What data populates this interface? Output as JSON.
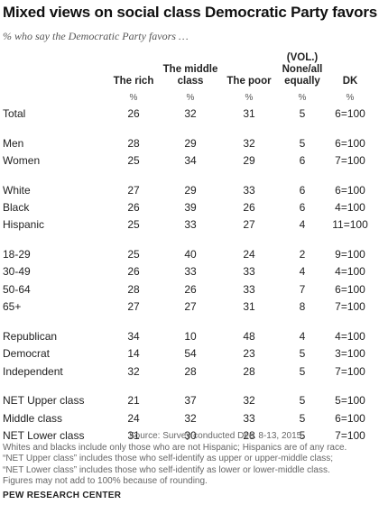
{
  "title": "Mixed views on social class Democratic Party favors",
  "subtitle": "% who say the Democratic Party favors …",
  "columns": [
    {
      "key": "rich",
      "label_lines": [
        "The rich"
      ],
      "unit": "%"
    },
    {
      "key": "middle",
      "label_lines": [
        "The middle",
        "class"
      ],
      "unit": "%"
    },
    {
      "key": "poor",
      "label_lines": [
        "The poor"
      ],
      "unit": "%"
    },
    {
      "key": "none",
      "label_lines": [
        "(VOL.)",
        "None/all",
        "equally"
      ],
      "unit": "%"
    },
    {
      "key": "dk",
      "label_lines": [
        "DK"
      ],
      "unit": "%"
    }
  ],
  "chart_data": {
    "type": "table",
    "title": "Mixed views on social class Democratic Party favors",
    "subtitle": "% who say the Democratic Party favors …",
    "columns": [
      "The rich",
      "The middle class",
      "The poor",
      "(VOL.) None/all equally",
      "DK"
    ],
    "groups": [
      {
        "rows": [
          {
            "label": "Total",
            "values": [
              "26",
              "32",
              "31",
              "5",
              "6=100"
            ]
          }
        ]
      },
      {
        "rows": [
          {
            "label": "Men",
            "values": [
              "28",
              "29",
              "32",
              "5",
              "6=100"
            ]
          },
          {
            "label": "Women",
            "values": [
              "25",
              "34",
              "29",
              "6",
              "7=100"
            ]
          }
        ]
      },
      {
        "rows": [
          {
            "label": "White",
            "values": [
              "27",
              "29",
              "33",
              "6",
              "6=100"
            ]
          },
          {
            "label": "Black",
            "values": [
              "26",
              "39",
              "26",
              "6",
              "4=100"
            ]
          },
          {
            "label": "Hispanic",
            "values": [
              "25",
              "33",
              "27",
              "4",
              "11=100"
            ]
          }
        ]
      },
      {
        "rows": [
          {
            "label": "18-29",
            "values": [
              "25",
              "40",
              "24",
              "2",
              "9=100"
            ]
          },
          {
            "label": "30-49",
            "values": [
              "26",
              "33",
              "33",
              "4",
              "4=100"
            ]
          },
          {
            "label": "50-64",
            "values": [
              "28",
              "26",
              "33",
              "7",
              "6=100"
            ]
          },
          {
            "label": "65+",
            "values": [
              "27",
              "27",
              "31",
              "8",
              "7=100"
            ]
          }
        ]
      },
      {
        "rows": [
          {
            "label": "Republican",
            "values": [
              "34",
              "10",
              "48",
              "4",
              "4=100"
            ]
          },
          {
            "label": "Democrat",
            "values": [
              "14",
              "54",
              "23",
              "5",
              "3=100"
            ]
          },
          {
            "label": "Independent",
            "values": [
              "32",
              "28",
              "28",
              "5",
              "7=100"
            ]
          }
        ]
      },
      {
        "rows": [
          {
            "label": "NET Upper class",
            "values": [
              "21",
              "37",
              "32",
              "5",
              "5=100"
            ]
          },
          {
            "label": "Middle class",
            "values": [
              "24",
              "32",
              "33",
              "5",
              "6=100"
            ]
          },
          {
            "label": "NET Lower class",
            "values": [
              "31",
              "30",
              "28",
              "5",
              "7=100"
            ]
          }
        ]
      }
    ]
  },
  "notes": {
    "source": "Source: Survey conducted Dec. 8-13, 2015.",
    "lines": [
      "Whites and blacks include only those who are not Hispanic; Hispanics are of any race.",
      "“NET Upper class” includes those who self-identify as upper or upper-middle class;",
      "“NET Lower class” includes those who self-identify as lower or lower-middle class.",
      "Figures may not add to 100% because of rounding."
    ]
  },
  "footer": "PEW RESEARCH CENTER"
}
